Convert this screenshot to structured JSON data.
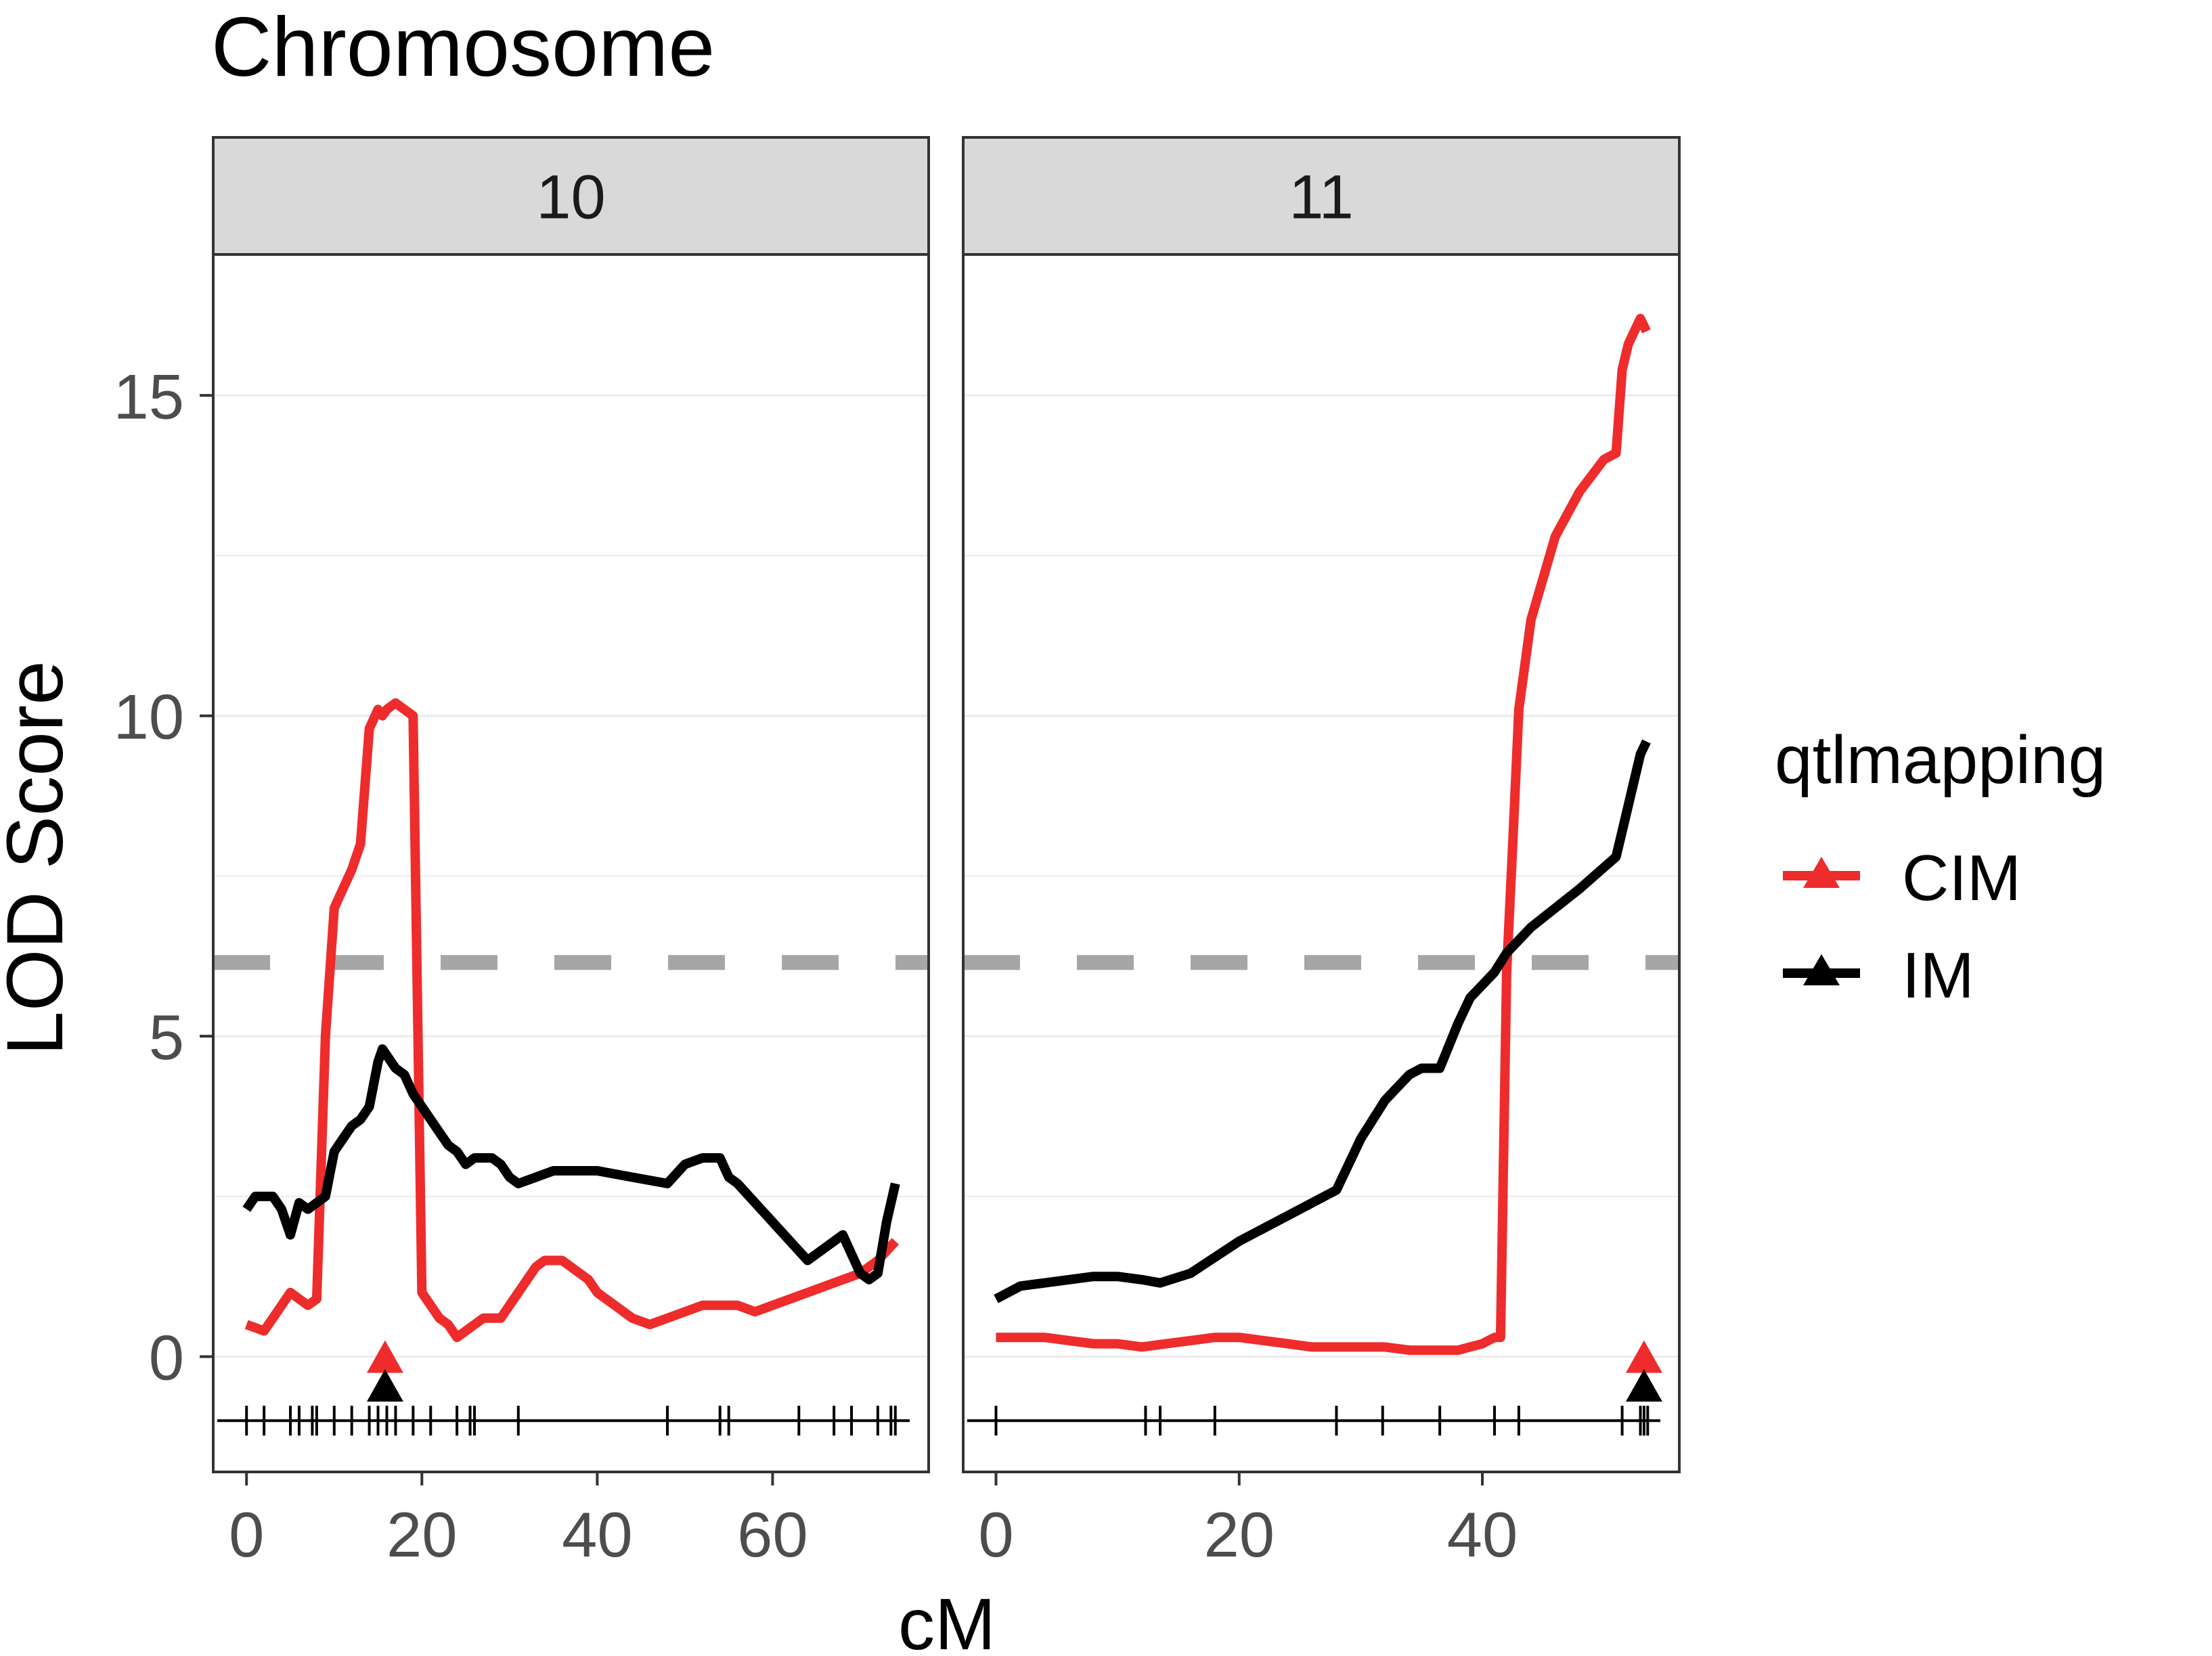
{
  "chart_data": {
    "type": "line",
    "title": "Chromosome",
    "xlabel": "cM",
    "ylabel": "LOD Score",
    "ylim": [
      -1.8,
      17.2
    ],
    "y_ticks": [
      0,
      5,
      10,
      15
    ],
    "y_tick_labels": [
      "0",
      "5",
      "10",
      "15"
    ],
    "threshold": 6.15,
    "legend": {
      "title": "qtlmapping",
      "position": "right",
      "entries": [
        {
          "label": "CIM",
          "color": "#EE2C2C"
        },
        {
          "label": "IM",
          "color": "#000000"
        }
      ]
    },
    "colors": {
      "CIM": "#EE2C2C",
      "IM": "#000000",
      "threshold": "#A6A6A6",
      "strip": "#D9D9D9"
    },
    "panels": [
      {
        "label": "10",
        "xlim": [
          -3.8,
          77.8
        ],
        "x_ticks": [
          0,
          20,
          40,
          60
        ],
        "x_tick_labels": [
          "0",
          "20",
          "40",
          "60"
        ],
        "markers": [
          0,
          2,
          5,
          6,
          7.5,
          8,
          10,
          12,
          14,
          15,
          16,
          17,
          19,
          21,
          24,
          25.5,
          26,
          31,
          48,
          54,
          55,
          63,
          67,
          69,
          72,
          73.5,
          74
        ],
        "peaks": {
          "CIM": 15.8,
          "IM": 15.8
        },
        "series": [
          {
            "name": "CIM",
            "x": [
              0,
              2,
              3,
              5,
              6,
              7,
              8,
              9,
              10,
              11,
              12,
              13,
              14,
              15,
              15.5,
              16,
              17,
              18,
              19,
              20,
              21,
              22,
              23,
              24,
              25,
              26,
              27,
              28,
              29,
              30,
              31,
              32,
              33,
              34,
              35,
              36,
              37,
              38,
              39,
              40,
              41,
              42,
              44,
              46,
              48,
              50,
              52,
              54,
              56,
              58,
              60,
              62,
              64,
              66,
              68,
              70,
              72,
              74
            ],
            "y": [
              0.5,
              0.4,
              0.6,
              1.0,
              0.9,
              0.8,
              0.9,
              5.0,
              7.0,
              7.3,
              7.6,
              8.0,
              9.8,
              10.1,
              10.0,
              10.1,
              10.2,
              10.1,
              10.0,
              1.0,
              0.8,
              0.6,
              0.5,
              0.3,
              0.4,
              0.5,
              0.6,
              0.6,
              0.6,
              0.8,
              1.0,
              1.2,
              1.4,
              1.5,
              1.5,
              1.5,
              1.4,
              1.3,
              1.2,
              1.0,
              0.9,
              0.8,
              0.6,
              0.5,
              0.6,
              0.7,
              0.8,
              0.8,
              0.8,
              0.7,
              0.8,
              0.9,
              1.0,
              1.1,
              1.2,
              1.3,
              1.5,
              1.8
            ]
          },
          {
            "name": "IM",
            "x": [
              0,
              1,
              2,
              3,
              4,
              5,
              6,
              7,
              8,
              9,
              10,
              11,
              12,
              13,
              14,
              15,
              15.5,
              16,
              17,
              18,
              19,
              20,
              21,
              22,
              23,
              24,
              25,
              26,
              27,
              28,
              29,
              30,
              31,
              33,
              35,
              37,
              40,
              44,
              48,
              50,
              52,
              54,
              55,
              56,
              58,
              60,
              62,
              64,
              66,
              68,
              69,
              70,
              71,
              72,
              73,
              74
            ],
            "y": [
              2.3,
              2.5,
              2.5,
              2.5,
              2.3,
              1.9,
              2.4,
              2.3,
              2.4,
              2.5,
              3.2,
              3.4,
              3.6,
              3.7,
              3.9,
              4.6,
              4.8,
              4.7,
              4.5,
              4.4,
              4.1,
              3.9,
              3.7,
              3.5,
              3.3,
              3.2,
              3.0,
              3.1,
              3.1,
              3.1,
              3.0,
              2.8,
              2.7,
              2.8,
              2.9,
              2.9,
              2.9,
              2.8,
              2.7,
              3.0,
              3.1,
              3.1,
              2.8,
              2.7,
              2.4,
              2.1,
              1.8,
              1.5,
              1.7,
              1.9,
              1.6,
              1.3,
              1.2,
              1.3,
              2.1,
              2.7
            ]
          }
        ]
      },
      {
        "label": "11",
        "xlim": [
          -2.7,
          56.2
        ],
        "x_ticks": [
          0,
          20,
          40
        ],
        "x_tick_labels": [
          "0",
          "20",
          "40"
        ],
        "markers": [
          0,
          12.3,
          13.5,
          18,
          28,
          31.8,
          36.5,
          41,
          43,
          51.5,
          53,
          53.3,
          53.6
        ],
        "peaks": {
          "CIM": 53.3,
          "IM": 53.3
        },
        "series": [
          {
            "name": "CIM",
            "x": [
              0,
              2,
              4,
              6,
              8,
              10,
              12,
              14,
              16,
              18,
              20,
              22,
              24,
              26,
              28,
              30,
              32,
              34,
              36,
              38,
              40,
              41,
              41.5,
              42,
              42.5,
              43,
              44,
              46,
              48,
              50,
              51,
              51.5,
              52,
              53,
              53.5
            ],
            "y": [
              0.3,
              0.3,
              0.3,
              0.25,
              0.2,
              0.2,
              0.15,
              0.2,
              0.25,
              0.3,
              0.3,
              0.25,
              0.2,
              0.15,
              0.15,
              0.15,
              0.15,
              0.1,
              0.1,
              0.1,
              0.2,
              0.3,
              0.3,
              6.0,
              8.0,
              10.1,
              11.5,
              12.8,
              13.5,
              14.0,
              14.1,
              15.4,
              15.8,
              16.2,
              16.0
            ]
          },
          {
            "name": "IM",
            "x": [
              0,
              1,
              2,
              4,
              6,
              8,
              10,
              12,
              13.5,
              16,
              20,
              24,
              28,
              30,
              32,
              34,
              35,
              36.5,
              38,
              39,
              40,
              41,
              42,
              44,
              48,
              51,
              52,
              53,
              53.5
            ],
            "y": [
              0.9,
              1.0,
              1.1,
              1.15,
              1.2,
              1.25,
              1.25,
              1.2,
              1.15,
              1.3,
              1.8,
              2.2,
              2.6,
              3.4,
              4.0,
              4.4,
              4.5,
              4.5,
              5.2,
              5.6,
              5.8,
              6.0,
              6.3,
              6.7,
              7.3,
              7.8,
              8.6,
              9.4,
              9.6
            ]
          }
        ]
      }
    ]
  }
}
